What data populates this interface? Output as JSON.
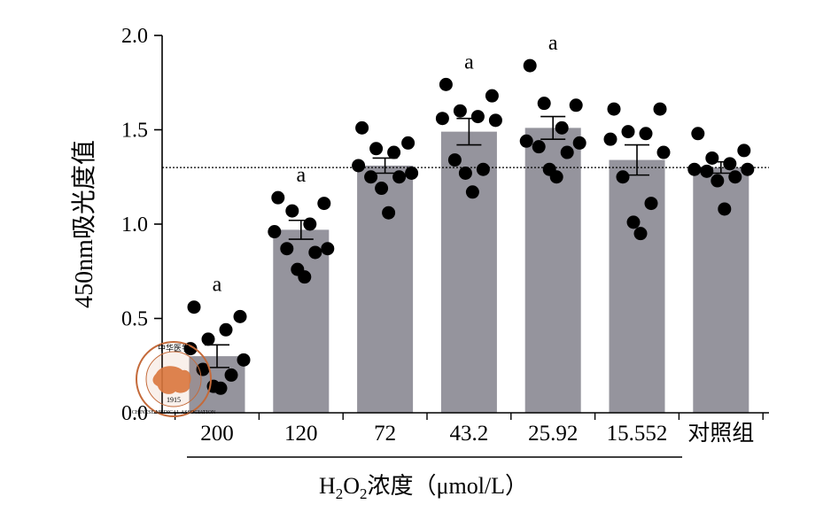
{
  "chart_data": {
    "type": "bar",
    "ylabel": "450nm吸光度值",
    "xlabel": {
      "prefix": "H",
      "sub1": "2",
      "mid": "O",
      "sub2": "2",
      "suffix": "浓度（μmol/L）"
    },
    "ylim": [
      0,
      2.0
    ],
    "yticks": [
      0.0,
      0.5,
      1.0,
      1.5,
      2.0
    ],
    "ytick_labels": [
      "0.0",
      "0.5",
      "1.0",
      "1.5",
      "2.0"
    ],
    "categories": [
      "200",
      "120",
      "72",
      "43.2",
      "25.92",
      "15.552",
      "对照组"
    ],
    "values": [
      0.3,
      0.97,
      1.31,
      1.49,
      1.51,
      1.34,
      1.3
    ],
    "sem": [
      0.06,
      0.05,
      0.04,
      0.07,
      0.06,
      0.08,
      0.03
    ],
    "significance": [
      "a",
      "a",
      "",
      "a",
      "a",
      "",
      ""
    ],
    "points": [
      [
        0.56,
        0.51,
        0.39,
        0.44,
        0.34,
        0.28,
        0.23,
        0.2,
        0.14,
        0.13
      ],
      [
        1.14,
        1.11,
        1.07,
        1.0,
        0.96,
        0.87,
        0.87,
        0.85,
        0.76,
        0.72
      ],
      [
        1.51,
        1.43,
        1.4,
        1.38,
        1.31,
        1.27,
        1.25,
        1.25,
        1.19,
        1.06
      ],
      [
        1.74,
        1.68,
        1.6,
        1.57,
        1.56,
        1.55,
        1.34,
        1.29,
        1.27,
        1.17
      ],
      [
        1.84,
        1.63,
        1.64,
        1.51,
        1.44,
        1.43,
        1.41,
        1.38,
        1.29,
        1.25
      ],
      [
        1.61,
        1.61,
        1.49,
        1.48,
        1.45,
        1.38,
        1.25,
        1.11,
        1.01,
        0.95
      ],
      [
        1.48,
        1.39,
        1.35,
        1.32,
        1.29,
        1.29,
        1.28,
        1.25,
        1.23,
        1.08
      ]
    ],
    "reference_line": 1.3,
    "bar_color": "#95949d",
    "point_color": "#000000",
    "group_bracket": "under first six categories"
  },
  "watermark": {
    "top_text": "中华医学",
    "bottom_text": "CHINESE MEDICAL ASSOCIATION",
    "year": "1915",
    "color": "#c46a3a"
  }
}
